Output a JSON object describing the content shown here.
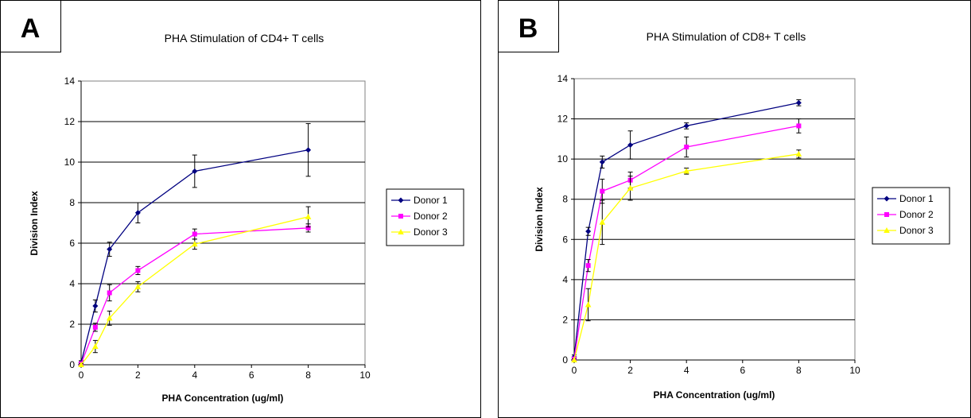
{
  "chart_data": [
    {
      "type": "line",
      "panel_label": "A",
      "title": "PHA Stimulation of CD4+ T cells",
      "xlabel": "PHA Concentration (ug/ml)",
      "ylabel": "Division Index",
      "xlim": [
        0,
        10
      ],
      "ylim": [
        0,
        14
      ],
      "xticks": [
        "0",
        "2",
        "4",
        "6",
        "8",
        "10"
      ],
      "yticks": [
        "0",
        "2",
        "4",
        "6",
        "8",
        "10",
        "12",
        "14"
      ],
      "grid": "horizontal",
      "legend": "right",
      "x": [
        0,
        0.5,
        1,
        2,
        4,
        8
      ],
      "series": [
        {
          "name": "Donor 1",
          "color": "#000080",
          "marker": "diamond",
          "values": [
            0.1,
            2.9,
            5.7,
            7.5,
            9.55,
            10.6
          ],
          "errors": [
            0.1,
            0.3,
            0.35,
            0.5,
            0.8,
            1.3
          ]
        },
        {
          "name": "Donor 2",
          "color": "#ff00ff",
          "marker": "square",
          "values": [
            0.05,
            1.85,
            3.55,
            4.65,
            6.45,
            6.75
          ],
          "errors": [
            0.05,
            0.2,
            0.4,
            0.2,
            0.25,
            0.2
          ]
        },
        {
          "name": "Donor 3",
          "color": "#ffff00",
          "marker": "triangle",
          "values": [
            0.0,
            0.9,
            2.3,
            3.85,
            5.95,
            7.3
          ],
          "errors": [
            0.05,
            0.3,
            0.35,
            0.25,
            0.25,
            0.5
          ]
        }
      ]
    },
    {
      "type": "line",
      "panel_label": "B",
      "title": "PHA Stimulation of CD8+ T cells",
      "xlabel": "PHA Concentration (ug/ml)",
      "ylabel": "Division Index",
      "xlim": [
        0,
        10
      ],
      "ylim": [
        0,
        14
      ],
      "xticks": [
        "0",
        "2",
        "4",
        "6",
        "8",
        "10"
      ],
      "yticks": [
        "0",
        "2",
        "4",
        "6",
        "8",
        "10",
        "12",
        "14"
      ],
      "grid": "horizontal",
      "legend": "right",
      "x": [
        0,
        0.5,
        1,
        2,
        4,
        8
      ],
      "series": [
        {
          "name": "Donor 1",
          "color": "#000080",
          "marker": "diamond",
          "values": [
            0.15,
            6.4,
            9.85,
            10.7,
            11.65,
            12.8
          ],
          "errors": [
            0.1,
            0.2,
            0.3,
            0.7,
            0.15,
            0.15
          ]
        },
        {
          "name": "Donor 2",
          "color": "#ff00ff",
          "marker": "square",
          "values": [
            0.05,
            4.7,
            8.4,
            8.95,
            10.6,
            11.65
          ],
          "errors": [
            0.05,
            0.3,
            0.6,
            0.4,
            0.5,
            0.35
          ]
        },
        {
          "name": "Donor 3",
          "color": "#ffff00",
          "marker": "triangle",
          "values": [
            0.0,
            2.75,
            6.85,
            8.55,
            9.4,
            10.25
          ],
          "errors": [
            0.05,
            0.8,
            1.1,
            0.6,
            0.15,
            0.2
          ]
        }
      ]
    }
  ]
}
